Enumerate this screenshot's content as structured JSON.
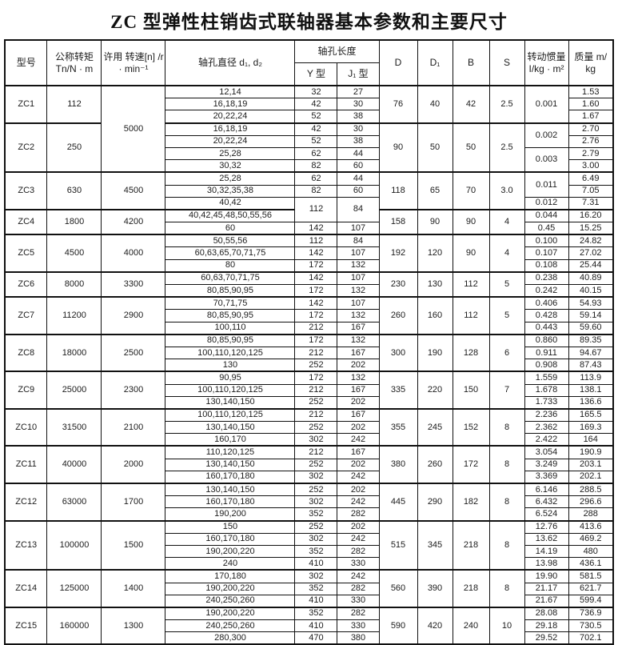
{
  "title": "ZC 型弹性柱销齿式联轴器基本参数和主要尺寸",
  "table": {
    "headers": {
      "model": "型号",
      "torque": "公称转矩\nTn/N · m",
      "speed": "许用 转速[n] /r\n· min⁻¹",
      "bore_diameter": "轴孔直径 d₁, d₂",
      "bore_length": "轴孔长度",
      "y_type": "Y 型",
      "j1_type": "J₁ 型",
      "d": "D",
      "d1": "D₁",
      "b": "B",
      "s": "S",
      "inertia": "转动惯量\nI/kg · m²",
      "mass": "质量 m/\nkg"
    },
    "groups": [
      {
        "model": "ZC1",
        "torque": "112",
        "speed": {
          "value": "5000",
          "span": 7
        },
        "D": "76",
        "D1": "40",
        "B": "42",
        "S": "2.5",
        "inertia": [
          {
            "value": "0.001",
            "span": 3
          }
        ],
        "rows": [
          {
            "bore": "12,14",
            "y": "32",
            "j1": "27",
            "mass": "1.53"
          },
          {
            "bore": "16,18,19",
            "y": "42",
            "j1": "30",
            "mass": "1.60"
          },
          {
            "bore": "20,22,24",
            "y": "52",
            "j1": "38",
            "mass": "1.67"
          }
        ]
      },
      {
        "model": "ZC2",
        "torque": "250",
        "speed": null,
        "D": "90",
        "D1": "50",
        "B": "50",
        "S": "2.5",
        "inertia": [
          {
            "value": "0.002",
            "span": 2
          },
          {
            "value": "0.003",
            "span": 2
          }
        ],
        "rows": [
          {
            "bore": "16,18,19",
            "y": "42",
            "j1": "30",
            "mass": "2.70"
          },
          {
            "bore": "20,22,24",
            "y": "52",
            "j1": "38",
            "mass": "2.76"
          },
          {
            "bore": "25,28",
            "y": "62",
            "j1": "44",
            "mass": "2.79"
          },
          {
            "bore": "30,32",
            "y": "82",
            "j1": "60",
            "mass": "3.00"
          }
        ]
      },
      {
        "model": "ZC3",
        "torque": "630",
        "speed": "4500",
        "D": "118",
        "D1": "65",
        "B": "70",
        "S": "3.0",
        "inertia": [
          {
            "value": "0.011",
            "span": 2
          },
          {
            "value": "0.012",
            "span": 1
          }
        ],
        "rows": [
          {
            "bore": "25,28",
            "y": "62",
            "j1": "44",
            "mass": "6.49"
          },
          {
            "bore": "30,32,35,38",
            "y": "82",
            "j1": "60",
            "mass": "7.05"
          },
          {
            "bore": "40,42",
            "y": {
              "value": "112",
              "span": 2
            },
            "j1": {
              "value": "84",
              "span": 2
            },
            "mass": "7.31"
          }
        ]
      },
      {
        "model": "ZC4",
        "torque": "1800",
        "speed": "4200",
        "D": "158",
        "D1": "90",
        "B": "90",
        "S": "4",
        "inertia": [
          {
            "value": "0.044",
            "span": 1
          },
          {
            "value": "0.45",
            "span": 1
          }
        ],
        "rows": [
          {
            "bore": "40,42,45,48,50,55,56",
            "y": null,
            "j1": null,
            "mass": "16.20"
          },
          {
            "bore": "60",
            "y": "142",
            "j1": "107",
            "mass": "15.25"
          }
        ]
      },
      {
        "model": "ZC5",
        "torque": "4500",
        "speed": "4000",
        "D": "192",
        "D1": "120",
        "B": "90",
        "S": "4",
        "inertia": [
          {
            "value": "0.100",
            "span": 1
          },
          {
            "value": "0.107",
            "span": 1
          },
          {
            "value": "0.108",
            "span": 1
          }
        ],
        "rows": [
          {
            "bore": "50,55,56",
            "y": "112",
            "j1": "84",
            "mass": "24.82"
          },
          {
            "bore": "60,63,65,70,71,75",
            "y": "142",
            "j1": "107",
            "mass": "27.02"
          },
          {
            "bore": "80",
            "y": "172",
            "j1": "132",
            "mass": "25.44"
          }
        ]
      },
      {
        "model": "ZC6",
        "torque": "8000",
        "speed": "3300",
        "D": "230",
        "D1": "130",
        "B": "112",
        "S": "5",
        "inertia": [
          {
            "value": "0.238",
            "span": 1
          },
          {
            "value": "0.242",
            "span": 1
          }
        ],
        "rows": [
          {
            "bore": "60,63,70,71,75",
            "y": "142",
            "j1": "107",
            "mass": "40.89"
          },
          {
            "bore": "80,85,90,95",
            "y": "172",
            "j1": "132",
            "mass": "40.15"
          }
        ]
      },
      {
        "model": "ZC7",
        "torque": "11200",
        "speed": "2900",
        "D": "260",
        "D1": "160",
        "B": "112",
        "S": "5",
        "inertia": [
          {
            "value": "0.406",
            "span": 1
          },
          {
            "value": "0.428",
            "span": 1
          },
          {
            "value": "0.443",
            "span": 1
          }
        ],
        "rows": [
          {
            "bore": "70,71,75",
            "y": "142",
            "j1": "107",
            "mass": "54.93"
          },
          {
            "bore": "80,85,90,95",
            "y": "172",
            "j1": "132",
            "mass": "59.14"
          },
          {
            "bore": "100,110",
            "y": "212",
            "j1": "167",
            "mass": "59.60"
          }
        ]
      },
      {
        "model": "ZC8",
        "torque": "18000",
        "speed": "2500",
        "D": "300",
        "D1": "190",
        "B": "128",
        "S": "6",
        "inertia": [
          {
            "value": "0.860",
            "span": 1
          },
          {
            "value": "0.911",
            "span": 1
          },
          {
            "value": "0.908",
            "span": 1
          }
        ],
        "rows": [
          {
            "bore": "80,85,90,95",
            "y": "172",
            "j1": "132",
            "mass": "89.35"
          },
          {
            "bore": "100,110,120,125",
            "y": "212",
            "j1": "167",
            "mass": "94.67"
          },
          {
            "bore": "130",
            "y": "252",
            "j1": "202",
            "mass": "87.43"
          }
        ]
      },
      {
        "model": "ZC9",
        "torque": "25000",
        "speed": "2300",
        "D": "335",
        "D1": "220",
        "B": "150",
        "S": "7",
        "inertia": [
          {
            "value": "1.559",
            "span": 1
          },
          {
            "value": "1.678",
            "span": 1
          },
          {
            "value": "1.733",
            "span": 1
          }
        ],
        "rows": [
          {
            "bore": "90,95",
            "y": "172",
            "j1": "132",
            "mass": "113.9"
          },
          {
            "bore": "100,110,120,125",
            "y": "212",
            "j1": "167",
            "mass": "138.1"
          },
          {
            "bore": "130,140,150",
            "y": "252",
            "j1": "202",
            "mass": "136.6"
          }
        ]
      },
      {
        "model": "ZC10",
        "torque": "31500",
        "speed": "2100",
        "D": "355",
        "D1": "245",
        "B": "152",
        "S": "8",
        "inertia": [
          {
            "value": "2.236",
            "span": 1
          },
          {
            "value": "2.362",
            "span": 1
          },
          {
            "value": "2.422",
            "span": 1
          }
        ],
        "rows": [
          {
            "bore": "100,110,120,125",
            "y": "212",
            "j1": "167",
            "mass": "165.5"
          },
          {
            "bore": "130,140,150",
            "y": "252",
            "j1": "202",
            "mass": "169.3"
          },
          {
            "bore": "160,170",
            "y": "302",
            "j1": "242",
            "mass": "164"
          }
        ]
      },
      {
        "model": "ZC11",
        "torque": "40000",
        "speed": "2000",
        "D": "380",
        "D1": "260",
        "B": "172",
        "S": "8",
        "inertia": [
          {
            "value": "3.054",
            "span": 1
          },
          {
            "value": "3.249",
            "span": 1
          },
          {
            "value": "3.369",
            "span": 1
          }
        ],
        "rows": [
          {
            "bore": "110,120,125",
            "y": "212",
            "j1": "167",
            "mass": "190.9"
          },
          {
            "bore": "130,140,150",
            "y": "252",
            "j1": "202",
            "mass": "203.1"
          },
          {
            "bore": "160,170,180",
            "y": "302",
            "j1": "242",
            "mass": "202.1"
          }
        ]
      },
      {
        "model": "ZC12",
        "torque": "63000",
        "speed": "1700",
        "D": "445",
        "D1": "290",
        "B": "182",
        "S": "8",
        "inertia": [
          {
            "value": "6.146",
            "span": 1
          },
          {
            "value": "6.432",
            "span": 1
          },
          {
            "value": "6.524",
            "span": 1
          }
        ],
        "rows": [
          {
            "bore": "130,140,150",
            "y": "252",
            "j1": "202",
            "mass": "288.5"
          },
          {
            "bore": "160,170,180",
            "y": "302",
            "j1": "242",
            "mass": "296.6"
          },
          {
            "bore": "190,200",
            "y": "352",
            "j1": "282",
            "mass": "288"
          }
        ]
      },
      {
        "model": "ZC13",
        "torque": "100000",
        "speed": "1500",
        "D": "515",
        "D1": "345",
        "B": "218",
        "S": "8",
        "inertia": [
          {
            "value": "12.76",
            "span": 1
          },
          {
            "value": "13.62",
            "span": 1
          },
          {
            "value": "14.19",
            "span": 1
          },
          {
            "value": "13.98",
            "span": 1
          }
        ],
        "rows": [
          {
            "bore": "150",
            "y": "252",
            "j1": "202",
            "mass": "413.6"
          },
          {
            "bore": "160,170,180",
            "y": "302",
            "j1": "242",
            "mass": "469.2"
          },
          {
            "bore": "190,200,220",
            "y": "352",
            "j1": "282",
            "mass": "480"
          },
          {
            "bore": "240",
            "y": "410",
            "j1": "330",
            "mass": "436.1"
          }
        ]
      },
      {
        "model": "ZC14",
        "torque": "125000",
        "speed": "1400",
        "D": "560",
        "D1": "390",
        "B": "218",
        "S": "8",
        "inertia": [
          {
            "value": "19.90",
            "span": 1
          },
          {
            "value": "21.17",
            "span": 1
          },
          {
            "value": "21.67",
            "span": 1
          }
        ],
        "rows": [
          {
            "bore": "170,180",
            "y": "302",
            "j1": "242",
            "mass": "581.5"
          },
          {
            "bore": "190,200,220",
            "y": "352",
            "j1": "282",
            "mass": "621.7"
          },
          {
            "bore": "240,250,260",
            "y": "410",
            "j1": "330",
            "mass": "599.4"
          }
        ]
      },
      {
        "model": "ZC15",
        "torque": "160000",
        "speed": "1300",
        "D": "590",
        "D1": "420",
        "B": "240",
        "S": "10",
        "inertia": [
          {
            "value": "28.08",
            "span": 1
          },
          {
            "value": "29.18",
            "span": 1
          },
          {
            "value": "29.52",
            "span": 1
          }
        ],
        "rows": [
          {
            "bore": "190,200,220",
            "y": "352",
            "j1": "282",
            "mass": "736.9"
          },
          {
            "bore": "240,250,260",
            "y": "410",
            "j1": "330",
            "mass": "730.5"
          },
          {
            "bore": "280,300",
            "y": "470",
            "j1": "380",
            "mass": "702.1"
          }
        ]
      }
    ]
  }
}
